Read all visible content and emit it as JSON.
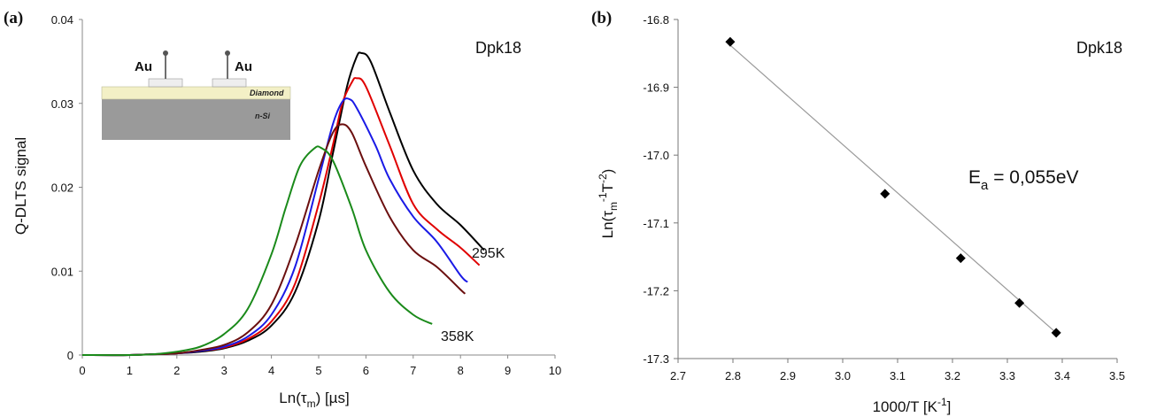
{
  "chart_data": [
    {
      "type": "line",
      "panel_label": "(a)",
      "sample_label": "Dpk18",
      "xlabel_main": "Ln(τ",
      "xlabel_sub": "m",
      "xlabel_tail": ") [µs]",
      "ylabel": "Q-DLTS signal",
      "xlim": [
        0,
        10
      ],
      "ylim": [
        0,
        0.04
      ],
      "xticks": [
        "0",
        "1",
        "2",
        "3",
        "4",
        "5",
        "6",
        "7",
        "8",
        "9",
        "10"
      ],
      "yticks": [
        "0",
        "0.01",
        "0.02",
        "0.03",
        "0.04"
      ],
      "grid": false,
      "annotations": {
        "top_temperature": "295K",
        "bottom_temperature": "358K"
      },
      "inset": {
        "electrode_left": "Au",
        "electrode_right": "Au",
        "layer_top": "Diamond",
        "layer_bottom": "n-Si"
      },
      "series": [
        {
          "color": "#000000",
          "x": [
            0,
            1,
            1.5,
            2,
            2.5,
            3,
            3.5,
            4,
            4.5,
            5,
            5.3,
            5.6,
            5.8,
            5.9,
            6.1,
            6.5,
            7,
            7.5,
            8,
            8.5
          ],
          "y": [
            0,
            0,
            0.0001,
            0.0002,
            0.0004,
            0.0008,
            0.0017,
            0.0035,
            0.0075,
            0.016,
            0.024,
            0.032,
            0.0355,
            0.036,
            0.035,
            0.029,
            0.022,
            0.018,
            0.0155,
            0.0125
          ]
        },
        {
          "color": "#e00000",
          "x": [
            0,
            1,
            1.5,
            2,
            2.5,
            3,
            3.5,
            4,
            4.5,
            5,
            5.3,
            5.5,
            5.7,
            5.8,
            6.0,
            6.5,
            7,
            7.5,
            8,
            8.4
          ],
          "y": [
            0,
            0,
            0.0001,
            0.0002,
            0.0005,
            0.0009,
            0.0019,
            0.004,
            0.0085,
            0.018,
            0.025,
            0.03,
            0.0325,
            0.033,
            0.032,
            0.025,
            0.018,
            0.015,
            0.0128,
            0.0107
          ]
        },
        {
          "color": "#1a1ae6",
          "x": [
            0,
            1,
            1.5,
            2,
            2.5,
            3,
            3.5,
            4,
            4.5,
            5,
            5.3,
            5.5,
            5.65,
            5.8,
            6.2,
            6.5,
            7,
            7.5,
            8,
            8.15
          ],
          "y": [
            0,
            0,
            0.0001,
            0.0002,
            0.0005,
            0.001,
            0.0022,
            0.0048,
            0.0105,
            0.021,
            0.0275,
            0.0302,
            0.0305,
            0.0295,
            0.025,
            0.021,
            0.0165,
            0.0135,
            0.0095,
            0.0087
          ]
        },
        {
          "color": "#6b0f0f",
          "x": [
            0,
            1,
            1.5,
            2,
            2.5,
            3,
            3.5,
            4,
            4.5,
            5,
            5.3,
            5.5,
            5.7,
            6.0,
            6.5,
            7,
            7.5,
            8,
            8.1
          ],
          "y": [
            0,
            0,
            0.0001,
            0.0002,
            0.0006,
            0.0012,
            0.0027,
            0.006,
            0.013,
            0.022,
            0.0265,
            0.0275,
            0.0265,
            0.0225,
            0.0165,
            0.0125,
            0.0105,
            0.0078,
            0.0073
          ]
        },
        {
          "color": "#1a8a1a",
          "x": [
            0,
            1,
            1.5,
            2,
            2.5,
            3,
            3.5,
            4,
            4.3,
            4.6,
            4.9,
            5.05,
            5.3,
            5.7,
            6.0,
            6.5,
            7,
            7.4
          ],
          "y": [
            0,
            0,
            0.0001,
            0.0004,
            0.001,
            0.0025,
            0.0055,
            0.012,
            0.0175,
            0.0225,
            0.0246,
            0.0247,
            0.0232,
            0.0175,
            0.0125,
            0.0075,
            0.0048,
            0.0037
          ]
        }
      ]
    },
    {
      "type": "scatter",
      "panel_label": "(b)",
      "sample_label": "Dpk18",
      "xlabel_main": "1000/T [K",
      "xlabel_sup": "-1",
      "xlabel_tail": "]",
      "ylabel_main": "Ln(τ",
      "ylabel_sub": "m",
      "ylabel_sup1": "-1",
      "ylabel_mid": "T",
      "ylabel_sup2": "-2",
      "ylabel_tail": ")",
      "xlim": [
        2.7,
        3.5
      ],
      "ylim": [
        -17.3,
        -16.8
      ],
      "xticks": [
        "2.7",
        "2.8",
        "2.9",
        "3.0",
        "3.1",
        "3.2",
        "3.3",
        "3.4",
        "3.5"
      ],
      "yticks": [
        "-16.8",
        "-16.9",
        "-17.0",
        "-17.1",
        "-17.2",
        "-17.3"
      ],
      "grid": false,
      "annotation_main": "E",
      "annotation_sub": "a",
      "annotation_tail": " = 0,055eV",
      "points": {
        "x": [
          2.795,
          3.077,
          3.215,
          3.322,
          3.389
        ],
        "y": [
          -16.833,
          -17.057,
          -17.152,
          -17.218,
          -17.262
        ]
      },
      "fit_line": {
        "x": [
          2.795,
          3.389
        ],
        "y": [
          -16.838,
          -17.262
        ]
      }
    }
  ]
}
